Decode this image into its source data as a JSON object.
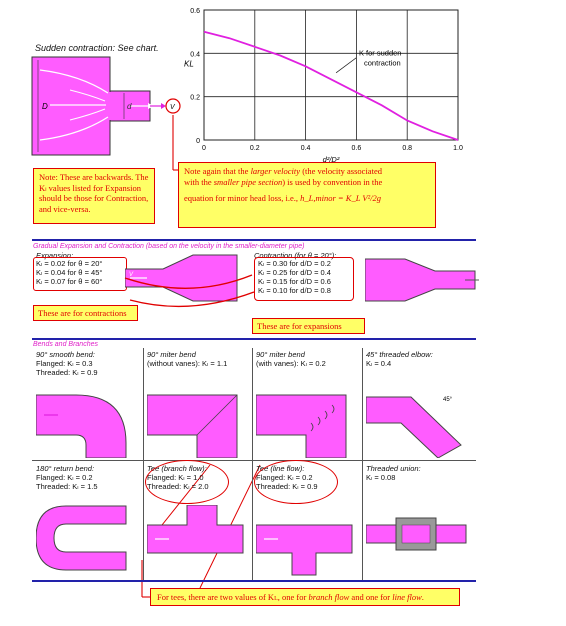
{
  "sudden": {
    "heading": "Sudden contraction: See chart.",
    "ylabel": "K",
    "ylabel_sub": "L",
    "xlabel": "d²/D²",
    "curve_label_line1": "K",
    "curve_label_line1_rest": " for sudden",
    "curve_label_line2": "contraction",
    "D": "D",
    "d": "d",
    "V": "V"
  },
  "chart_data": {
    "type": "line",
    "title": "",
    "xlabel": "d²/D²",
    "ylabel": "K_L",
    "xlim": [
      0,
      1.0
    ],
    "ylim": [
      0,
      0.6
    ],
    "xticks": [
      "0",
      "0.2",
      "0.4",
      "0.6",
      "0.8",
      "1.0"
    ],
    "yticks": [
      "0",
      "0.2",
      "0.4",
      "0.6"
    ],
    "grid": true,
    "series": [
      {
        "name": "K_L for sudden contraction",
        "color": "#e020e0",
        "x": [
          0,
          0.1,
          0.2,
          0.3,
          0.4,
          0.5,
          0.6,
          0.7,
          0.8,
          0.9,
          1.0
        ],
        "y": [
          0.5,
          0.47,
          0.43,
          0.39,
          0.34,
          0.28,
          0.22,
          0.16,
          0.09,
          0.04,
          0.0
        ]
      }
    ]
  },
  "note_backwards": {
    "text": "Note: These are backwards. The Kₗ values listed for Expansion should be those for Contraction, and vice-versa."
  },
  "note_velocity": {
    "line1a": "Note again that the ",
    "line1b": "larger velocity",
    "line1c": " (the velocity associated",
    "line2a": "with the ",
    "line2b": "smaller pipe section",
    "line2c": ") is used by convention in the",
    "line3": "equation for minor head loss, i.e.,",
    "formula": "h_L,minor = K_L V²/2g"
  },
  "gradual": {
    "heading": "Gradual Expansion and Contraction (based on the velocity in the smaller-diameter pipe)",
    "expansion_title": "Expansion:",
    "expansion_items": [
      "Kₗ = 0.02 for θ = 20°",
      "Kₗ = 0.04 for θ = 45°",
      "Kₗ = 0.07 for θ = 60°"
    ],
    "contraction_title": "Contraction (for θ = 20°):",
    "contraction_items": [
      "Kₗ = 0.30 for d/D = 0.2",
      "Kₗ = 0.25 for d/D = 0.4",
      "Kₗ = 0.15 for d/D = 0.6",
      "Kₗ = 0.10 for d/D = 0.8"
    ],
    "label_contractions": "These are for contractions",
    "label_expansions": "These are for expansions"
  },
  "bends": {
    "heading": "Bends and Branches",
    "cells": [
      {
        "l1": "90° smooth bend:",
        "l2": "Flanged: Kₗ = 0.3",
        "l3": "Threaded: Kₗ = 0.9"
      },
      {
        "l1": "90° miter bend",
        "l2": "(without vanes): Kₗ = 1.1",
        "l3": ""
      },
      {
        "l1": "90° miter bend",
        "l2": "(with vanes): Kₗ = 0.2",
        "l3": ""
      },
      {
        "l1": "45° threaded elbow:",
        "l2": "Kₗ = 0.4",
        "l3": ""
      },
      {
        "l1": "180° return bend:",
        "l2": "Flanged: Kₗ = 0.2",
        "l3": "Threaded: Kₗ = 1.5"
      },
      {
        "l1": "Tee (branch flow):",
        "l2": "Flanged: Kₗ = 1.0",
        "l3": "Threaded: Kₗ = 2.0"
      },
      {
        "l1": "Tee (line flow):",
        "l2": "Flanged: Kₗ = 0.2",
        "l3": "Threaded: Kₗ = 0.9"
      },
      {
        "l1": "Threaded union:",
        "l2": "Kₗ = 0.08",
        "l3": ""
      }
    ],
    "angle45": "45°",
    "V": "V"
  },
  "note_tees": {
    "a": "For tees, there are two values of K",
    "b": ", one for ",
    "c": "branch flow",
    "d": " and one for ",
    "e": "line flow",
    "f": "."
  },
  "colors": {
    "pipe": "#ff5cff",
    "red": "#e00000",
    "note_bg": "#ffff66",
    "rule": "#2222aa"
  }
}
